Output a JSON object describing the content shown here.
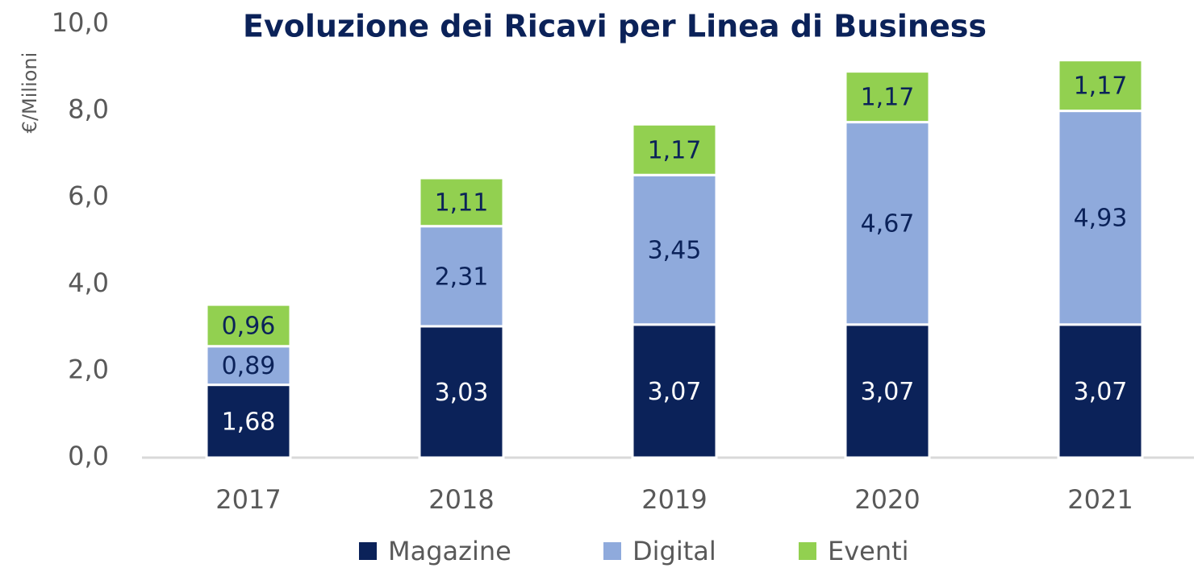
{
  "chart_data": {
    "type": "stacked_bar",
    "title": "Evoluzione dei Ricavi per Linea di Business",
    "y_label": "€/Milioni",
    "categories": [
      "2017",
      "2018",
      "2019",
      "2020",
      "2021"
    ],
    "series": [
      {
        "name": "Magazine",
        "color": "#0b2259",
        "values": [
          1.68,
          3.03,
          3.07,
          3.07,
          3.07
        ],
        "value_labels": [
          "1,68",
          "3,03",
          "3,07",
          "3,07",
          "3,07"
        ]
      },
      {
        "name": "Digital",
        "color": "#8faadc",
        "values": [
          0.89,
          2.31,
          3.45,
          4.67,
          4.93
        ],
        "value_labels": [
          "0,89",
          "2,31",
          "3,45",
          "4,67",
          "4,93"
        ]
      },
      {
        "name": "Eventi",
        "color": "#92d050",
        "values": [
          0.96,
          1.11,
          1.17,
          1.17,
          1.17
        ],
        "value_labels": [
          "0,96",
          "1,11",
          "1,17",
          "1,17",
          "1,17"
        ]
      }
    ],
    "ylim": [
      0,
      10
    ],
    "yticks": [
      {
        "value": 0,
        "label": "0,0"
      },
      {
        "value": 2,
        "label": "2,0"
      },
      {
        "value": 4,
        "label": "4,0"
      },
      {
        "value": 6,
        "label": "6,0"
      },
      {
        "value": 8,
        "label": "8,0"
      },
      {
        "value": 10,
        "label": "10,0"
      }
    ],
    "legend": "bottom"
  }
}
